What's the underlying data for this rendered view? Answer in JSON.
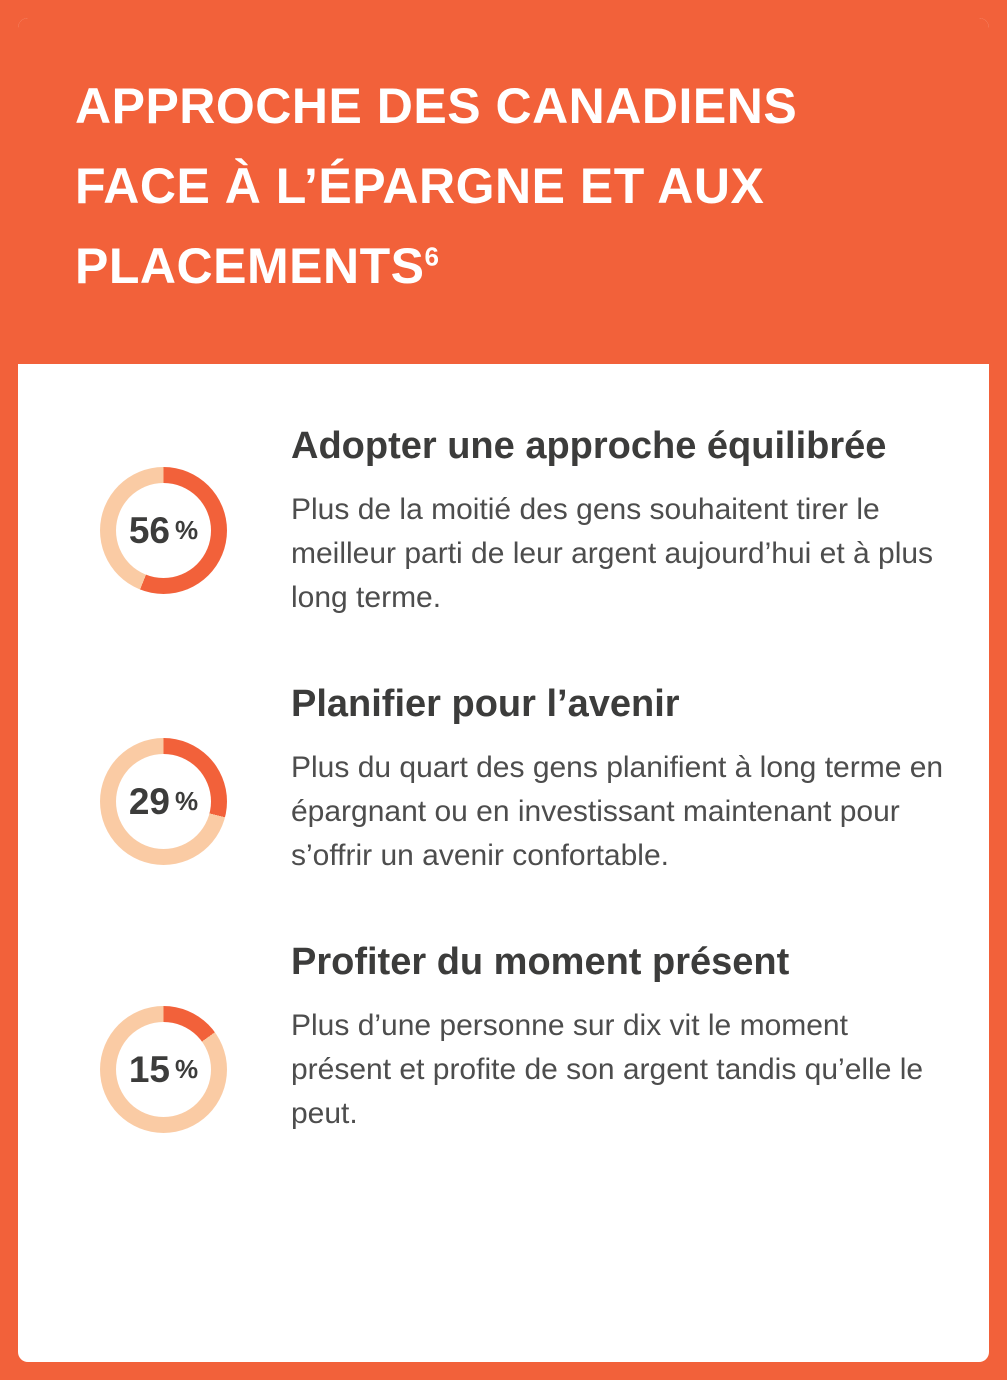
{
  "colors": {
    "orange": "#F2613A",
    "light_orange": "#FACBA4",
    "heading_text": "#3C3C3B",
    "body_text": "#4D4D4D",
    "white": "#ffffff"
  },
  "header": {
    "lines": [
      "APPROCHE DES CANADIENS",
      "FACE À L’ÉPARGNE ET AUX",
      "PLACEMENTS"
    ],
    "footnote_marker": "6"
  },
  "chart_data": {
    "type": "pie",
    "subtype": "donut",
    "title": "Approche des Canadiens face à l’épargne et aux placements",
    "unit": "%",
    "categories": [
      "Adopter une approche équilibrée",
      "Planifier pour l’avenir",
      "Profiter du moment présent"
    ],
    "values": [
      56,
      29,
      15
    ],
    "legend_position": "none",
    "notes": "Trois anneaux distincts; portion pleine en orange, reste en orange pâle, pourcentage affiché au centre."
  },
  "sections": [
    {
      "value": 56,
      "percent_number": "56",
      "percent_symbol": "%",
      "title": "Adopter une approche équilibrée",
      "body": "Plus de la moitié des gens souhaitent tirer le meilleur parti de leur argent aujourd’hui et à plus long terme."
    },
    {
      "value": 29,
      "percent_number": "29",
      "percent_symbol": "%",
      "title": "Planifier pour l’avenir",
      "body": "Plus du quart des gens planifient à long terme en épargnant ou en investissant maintenant pour s’offrir un avenir confortable."
    },
    {
      "value": 15,
      "percent_number": "15",
      "percent_symbol": "%",
      "title": "Profiter du moment présent",
      "body": "Plus d’une personne sur dix vit le moment présent et profite de son argent tandis qu’elle le peut."
    }
  ]
}
